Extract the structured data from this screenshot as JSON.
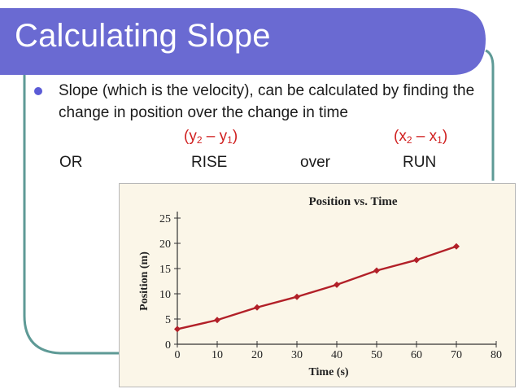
{
  "slide": {
    "title": "Calculating Slope",
    "bullet": "Slope (which is the velocity), can be calculated by finding the change in position over the change in time",
    "rise_formula": {
      "open": "(y",
      "sub1": "2",
      "mid": " – y",
      "sub2": "1",
      "close": ")"
    },
    "run_formula": {
      "open": "(x",
      "sub1": "2",
      "mid": " – x",
      "sub2": "1",
      "close": ")"
    },
    "row": {
      "or": "OR",
      "rise": "RISE",
      "over": "over",
      "run": "RUN"
    },
    "colors": {
      "title_bar": "#6a6ad2",
      "frame": "#5e9a96",
      "formula": "#d02020",
      "line": "#b22028"
    }
  },
  "chart_data": {
    "type": "line",
    "title": "Position vs. Time",
    "xlabel": "Time (s)",
    "ylabel": "Position (m)",
    "xlim": [
      0,
      80
    ],
    "ylim": [
      0,
      25
    ],
    "xticks": [
      0,
      10,
      20,
      30,
      40,
      50,
      60,
      70,
      80
    ],
    "yticks": [
      0,
      5,
      10,
      15,
      20,
      25
    ],
    "x": [
      0,
      10,
      20,
      30,
      40,
      50,
      60,
      70
    ],
    "series": [
      {
        "values": [
          3,
          4.8,
          7.3,
          9.4,
          11.8,
          14.6,
          16.7,
          19.4
        ]
      }
    ],
    "grid": false
  }
}
